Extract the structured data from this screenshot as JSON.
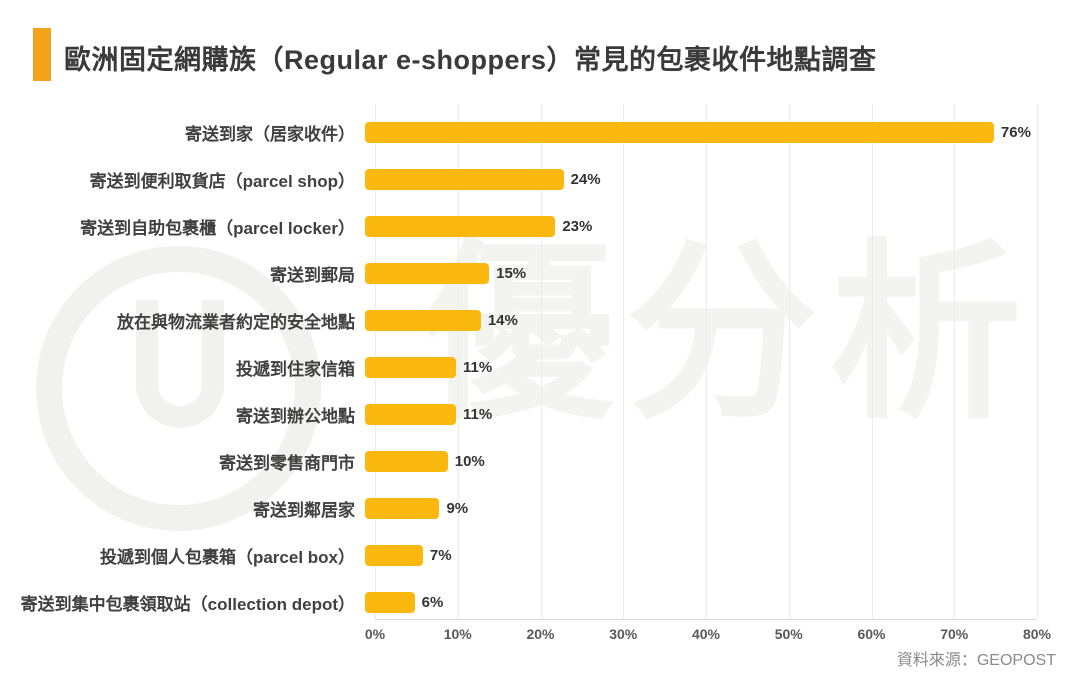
{
  "title": "歐洲固定網購族（Regular e-shoppers）常見的包裹收件地點調查",
  "source": "資料來源：GEOPOST",
  "watermark": {
    "text": "優分析",
    "logo": "u-ring-logo"
  },
  "colors": {
    "bar": "#FBB90F",
    "accent": "#F5A31C",
    "title_text": "#3A3A3A",
    "label_text": "#404040",
    "tick_text": "#595959",
    "source_text": "#8A8A8A",
    "watermark": "#F1F1EE",
    "watermark_text": "#F3F3F0"
  },
  "chart_data": {
    "type": "bar",
    "orientation": "horizontal",
    "title": "歐洲固定網購族（Regular e-shoppers）常見的包裹收件地點調查",
    "categories": [
      "寄送到家（居家收件）",
      "寄送到便利取貨店（parcel shop）",
      "寄送到自助包裹櫃（parcel locker）",
      "寄送到郵局",
      "放在與物流業者約定的安全地點",
      "投遞到住家信箱",
      "寄送到辦公地點",
      "寄送到零售商門市",
      "寄送到鄰居家",
      "投遞到個人包裹箱（parcel box）",
      "寄送到集中包裹領取站（collection depot）"
    ],
    "values": [
      76,
      24,
      23,
      15,
      14,
      11,
      11,
      10,
      9,
      7,
      6
    ],
    "unit": "%",
    "xlim": [
      0,
      80
    ],
    "x_ticks": [
      "0%",
      "10%",
      "20%",
      "30%",
      "40%",
      "50%",
      "60%",
      "70%",
      "80%"
    ],
    "grid": true,
    "legend": null
  }
}
